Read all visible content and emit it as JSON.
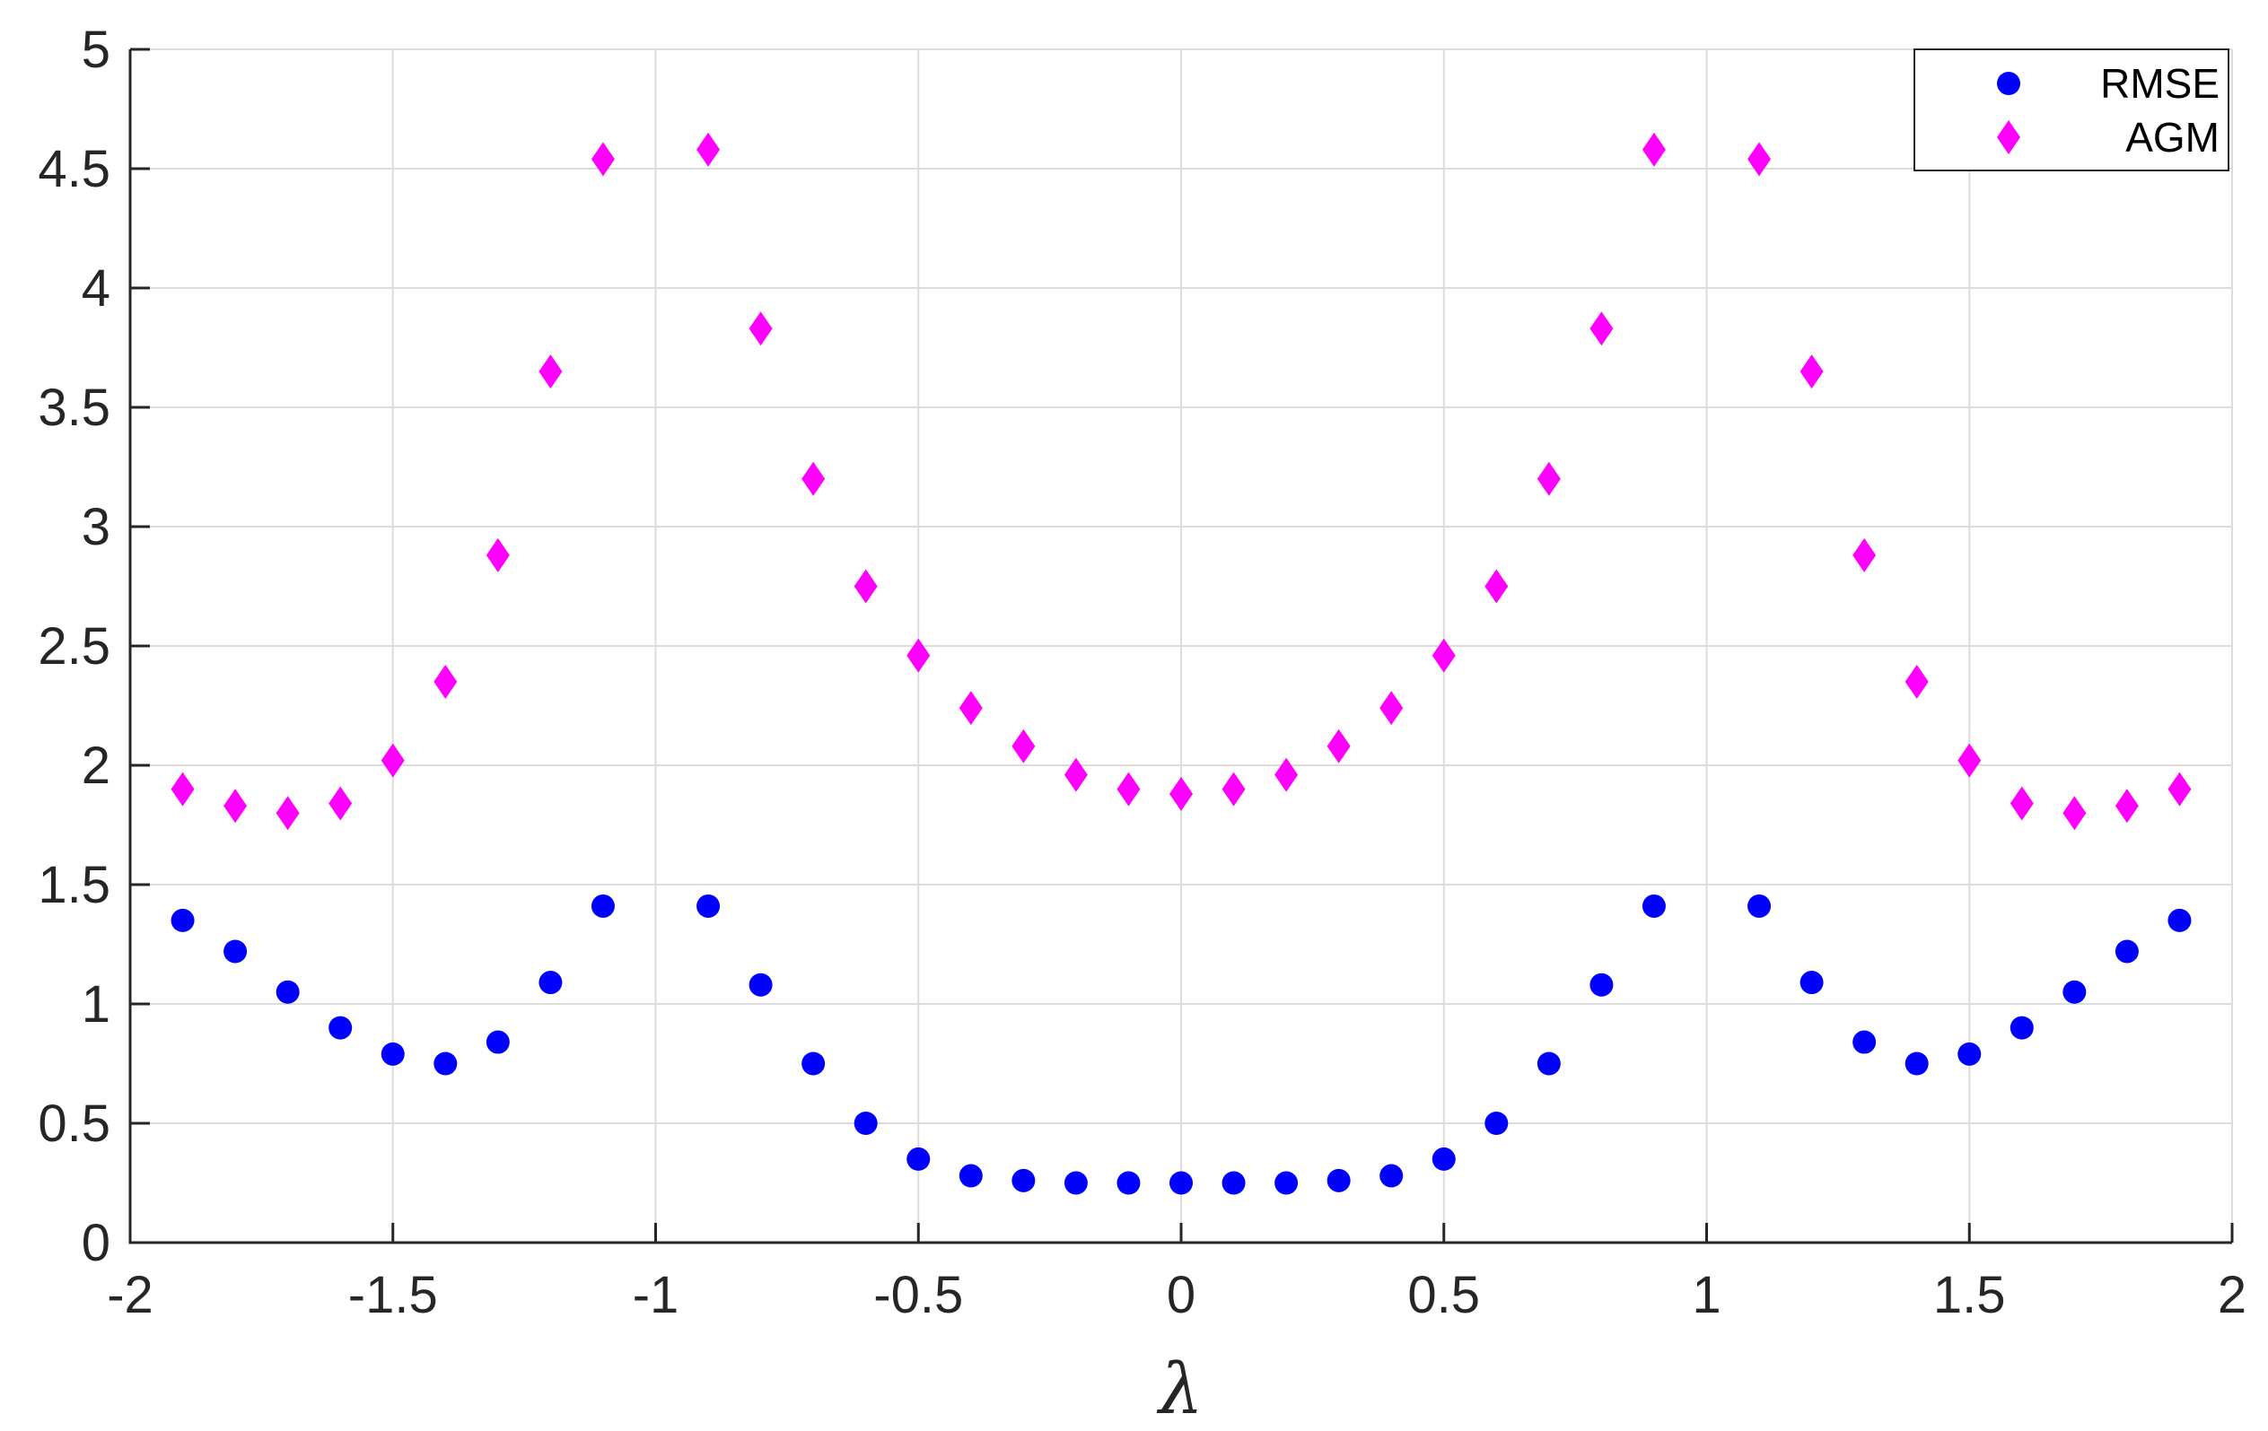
{
  "chart_data": {
    "type": "scatter",
    "title": "",
    "xlabel": "λ",
    "ylabel": "",
    "xlim": [
      -2,
      2
    ],
    "ylim": [
      0,
      5
    ],
    "xticks": [
      -2,
      -1.5,
      -1,
      -0.5,
      0,
      0.5,
      1,
      1.5,
      2
    ],
    "xtick_labels": [
      "-2",
      "-1.5",
      "-1",
      "-0.5",
      "0",
      "0.5",
      "1",
      "1.5",
      "2"
    ],
    "yticks": [
      0,
      0.5,
      1,
      1.5,
      2,
      2.5,
      3,
      3.5,
      4,
      4.5,
      5
    ],
    "ytick_labels": [
      "0",
      "0.5",
      "1",
      "1.5",
      "2",
      "2.5",
      "3",
      "3.5",
      "4",
      "4.5",
      "5"
    ],
    "grid": true,
    "legend_position": "top-right",
    "x": [
      -1.9,
      -1.8,
      -1.7,
      -1.6,
      -1.5,
      -1.4,
      -1.3,
      -1.2,
      -1.1,
      -0.9,
      -0.8,
      -0.7,
      -0.6,
      -0.5,
      -0.4,
      -0.3,
      -0.2,
      -0.1,
      0,
      0.1,
      0.2,
      0.3,
      0.4,
      0.5,
      0.6,
      0.7,
      0.8,
      0.9,
      1.1,
      1.2,
      1.3,
      1.4,
      1.5,
      1.6,
      1.7,
      1.8,
      1.9
    ],
    "series": [
      {
        "name": "RMSE",
        "marker": "circle",
        "color": "#0000ff",
        "values": [
          1.35,
          1.22,
          1.05,
          0.9,
          0.79,
          0.75,
          0.84,
          1.09,
          1.41,
          1.41,
          1.08,
          0.75,
          0.5,
          0.35,
          0.28,
          0.26,
          0.25,
          0.25,
          0.25,
          0.25,
          0.25,
          0.26,
          0.28,
          0.35,
          0.5,
          0.75,
          1.08,
          1.41,
          1.41,
          1.09,
          0.84,
          0.75,
          0.79,
          0.9,
          1.05,
          1.22,
          1.35
        ]
      },
      {
        "name": "AGM",
        "marker": "diamond",
        "color": "#ff00ff",
        "values": [
          1.9,
          1.83,
          1.8,
          1.84,
          2.02,
          2.35,
          2.88,
          3.65,
          4.54,
          4.58,
          3.83,
          3.2,
          2.75,
          2.46,
          2.24,
          2.08,
          1.96,
          1.9,
          1.88,
          1.9,
          1.96,
          2.08,
          2.24,
          2.46,
          2.75,
          3.2,
          3.83,
          4.58,
          4.54,
          3.65,
          2.88,
          2.35,
          2.02,
          1.84,
          1.8,
          1.83,
          1.9
        ]
      }
    ]
  }
}
